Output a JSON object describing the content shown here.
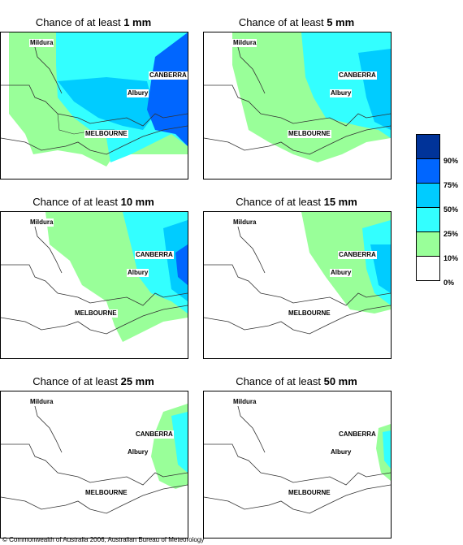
{
  "cities": {
    "mildura": "Mildura",
    "canberra": "CANBERRA",
    "albury": "Albury",
    "melbourne": "MELBOURNE"
  },
  "title_prefix": "Chance of at least ",
  "panels": [
    {
      "amount": "1 mm"
    },
    {
      "amount": "5 mm"
    },
    {
      "amount": "10 mm"
    },
    {
      "amount": "15 mm"
    },
    {
      "amount": "25 mm"
    },
    {
      "amount": "50 mm"
    }
  ],
  "legend": {
    "labels": [
      "90%",
      "75%",
      "50%",
      "25%",
      "10%",
      "0%"
    ],
    "colors": [
      "#003399",
      "#0066ff",
      "#00ccff",
      "#33ffff",
      "#99ff99",
      "#ffffff"
    ]
  },
  "copyright": "© Commonwealth of Australia 2006, Australian Bureau of Meteorology"
}
